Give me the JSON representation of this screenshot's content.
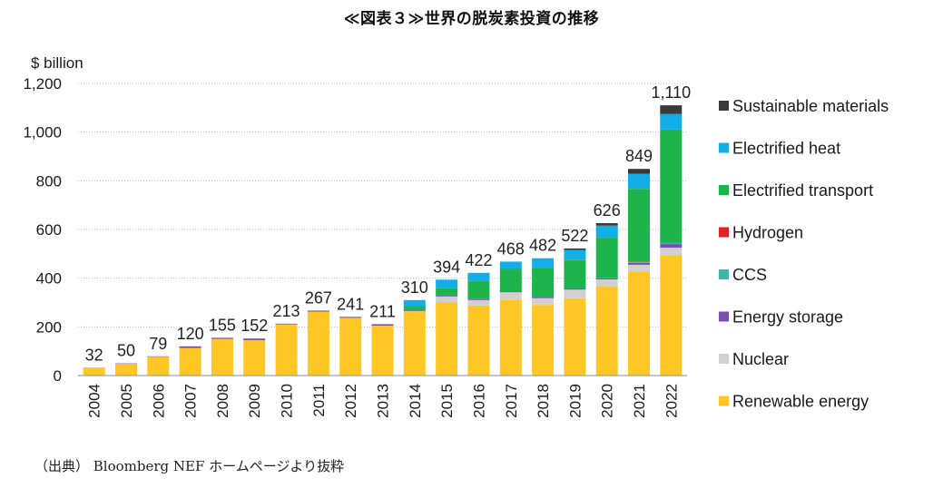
{
  "title": "≪図表３≫世界の脱炭素投資の推移",
  "source": "（出典） Bloomberg NEF ホームページより抜粋",
  "chart_data": {
    "type": "bar",
    "stacked": true,
    "ylabel": "$ billion",
    "ylim": [
      0,
      1200
    ],
    "yticks": [
      0,
      200,
      400,
      600,
      800,
      1000,
      1200
    ],
    "ytick_labels": [
      "0",
      "200",
      "400",
      "600",
      "800",
      "1,000",
      "1,200"
    ],
    "grid": true,
    "legend_position": "right",
    "categories": [
      "2004",
      "2005",
      "2006",
      "2007",
      "2008",
      "2009",
      "2010",
      "2011",
      "2012",
      "2013",
      "2014",
      "2015",
      "2016",
      "2017",
      "2018",
      "2019",
      "2020",
      "2021",
      "2022"
    ],
    "totals": [
      32,
      50,
      79,
      120,
      155,
      152,
      213,
      267,
      241,
      211,
      310,
      394,
      422,
      468,
      482,
      522,
      626,
      849,
      1110
    ],
    "total_labels": [
      "32",
      "50",
      "79",
      "120",
      "155",
      "152",
      "213",
      "267",
      "241",
      "211",
      "310",
      "394",
      "422",
      "468",
      "482",
      "522",
      "626",
      "849",
      "1,110"
    ],
    "series": [
      {
        "name": "Renewable energy",
        "color": "#FFC726",
        "values": [
          31,
          48,
          77,
          113,
          150,
          145,
          210,
          263,
          237,
          205,
          265,
          300,
          288,
          312,
          290,
          318,
          365,
          425,
          495
        ]
      },
      {
        "name": "Nuclear",
        "color": "#D0D0D0",
        "values": [
          0,
          0,
          0,
          0,
          0,
          0,
          0,
          0,
          0,
          0,
          0,
          25,
          22,
          30,
          28,
          35,
          30,
          30,
          30
        ]
      },
      {
        "name": "Energy storage",
        "color": "#7B4FB0",
        "values": [
          1,
          2,
          2,
          7,
          5,
          7,
          3,
          4,
          4,
          6,
          3,
          3,
          4,
          3,
          4,
          3,
          4,
          8,
          15
        ]
      },
      {
        "name": "CCS",
        "color": "#3DB8A8",
        "values": [
          0,
          0,
          0,
          0,
          0,
          0,
          0,
          0,
          0,
          0,
          0,
          0,
          0,
          0,
          0,
          0,
          2,
          3,
          4
        ]
      },
      {
        "name": "Hydrogen",
        "color": "#E21E26",
        "values": [
          0,
          0,
          0,
          0,
          0,
          0,
          0,
          0,
          0,
          0,
          0,
          0,
          0,
          0,
          0,
          0,
          0,
          1,
          1
        ]
      },
      {
        "name": "Electrified transport",
        "color": "#1DB44C",
        "values": [
          0,
          0,
          0,
          0,
          0,
          0,
          0,
          0,
          0,
          0,
          17,
          31,
          74,
          93,
          120,
          120,
          165,
          300,
          465
        ]
      },
      {
        "name": "Electrified heat",
        "color": "#13AEE8",
        "values": [
          0,
          0,
          0,
          0,
          0,
          0,
          0,
          0,
          0,
          0,
          25,
          35,
          34,
          30,
          40,
          40,
          50,
          62,
          65
        ]
      },
      {
        "name": "Sustainable materials",
        "color": "#3A3A3A",
        "values": [
          0,
          0,
          0,
          0,
          0,
          0,
          0,
          0,
          0,
          0,
          0,
          0,
          0,
          0,
          0,
          6,
          10,
          20,
          35
        ]
      }
    ],
    "legend_order": [
      "Sustainable materials",
      "Electrified heat",
      "Electrified transport",
      "Hydrogen",
      "CCS",
      "Energy storage",
      "Nuclear",
      "Renewable energy"
    ]
  }
}
